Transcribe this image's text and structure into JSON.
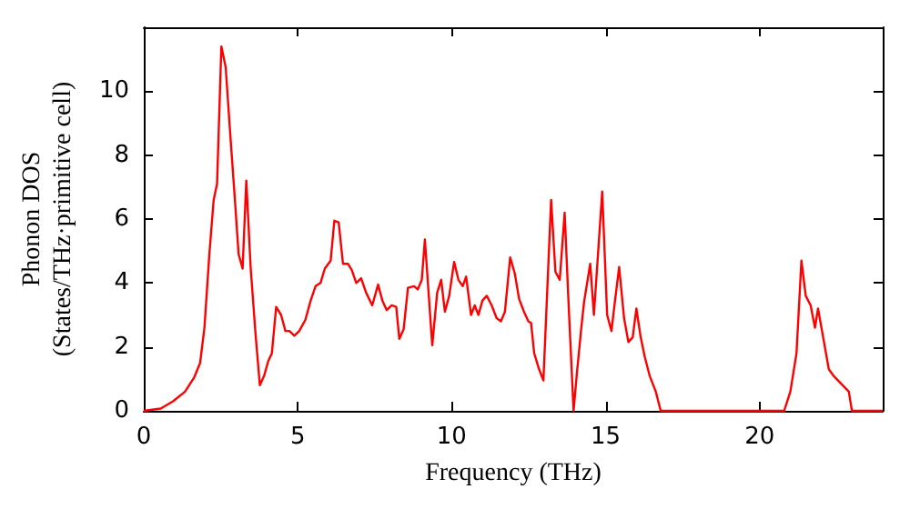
{
  "chart_data": {
    "type": "line",
    "xlabel": "Frequency (THz)",
    "ylabel": "Phonon DOS\n(States/THz·primitive cell)",
    "xlim": [
      0,
      24
    ],
    "ylim": [
      0,
      12
    ],
    "xticks": [
      0,
      5,
      10,
      15,
      20
    ],
    "yticks": [
      0,
      2,
      4,
      6,
      8,
      10
    ],
    "grid": false,
    "marker": "none",
    "line_style": "solid",
    "series": [
      {
        "color": "#ff0000",
        "x": [
          0,
          0.55,
          0.95,
          1.34,
          1.64,
          1.83,
          1.97,
          2.13,
          2.27,
          2.38,
          2.52,
          2.66,
          2.82,
          2.96,
          3.08,
          3.21,
          3.33,
          3.47,
          3.63,
          3.77,
          3.91,
          4.04,
          4.16,
          4.3,
          4.46,
          4.6,
          4.73,
          4.89,
          5.05,
          5.25,
          5.42,
          5.58,
          5.74,
          5.88,
          6.07,
          6.19,
          6.33,
          6.47,
          6.63,
          6.76,
          6.9,
          7.06,
          7.22,
          7.42,
          7.61,
          7.75,
          7.89,
          8.05,
          8.2,
          8.3,
          8.44,
          8.58,
          8.78,
          8.9,
          9.03,
          9.13,
          9.37,
          9.53,
          9.66,
          9.78,
          9.92,
          10.08,
          10.22,
          10.36,
          10.47,
          10.63,
          10.75,
          10.87,
          11.0,
          11.14,
          11.3,
          11.46,
          11.6,
          11.73,
          11.9,
          12.05,
          12.19,
          12.35,
          12.49,
          12.58,
          12.68,
          12.84,
          12.98,
          13.23,
          13.37,
          13.51,
          13.67,
          13.8,
          13.96,
          14.06,
          14.2,
          14.3,
          14.5,
          14.62,
          14.89,
          15.05,
          15.19,
          15.3,
          15.44,
          15.6,
          15.74,
          15.88,
          16.0,
          16.14,
          16.27,
          16.43,
          16.63,
          16.79,
          20.8,
          21.0,
          21.2,
          21.36,
          21.5,
          21.66,
          21.8,
          21.9,
          22.25,
          22.4,
          22.9,
          23.0,
          24
        ],
        "values": [
          0,
          0.07,
          0.3,
          0.6,
          1.05,
          1.5,
          2.6,
          4.9,
          6.6,
          7.1,
          11.4,
          10.75,
          8.5,
          6.6,
          4.9,
          4.45,
          7.2,
          4.5,
          2.4,
          0.8,
          1.1,
          1.55,
          1.8,
          3.25,
          3.0,
          2.5,
          2.5,
          2.35,
          2.5,
          2.85,
          3.45,
          3.9,
          4.0,
          4.45,
          4.7,
          5.95,
          5.9,
          4.6,
          4.6,
          4.4,
          4.0,
          4.15,
          3.7,
          3.3,
          3.95,
          3.45,
          3.15,
          3.3,
          3.25,
          2.25,
          2.55,
          3.85,
          3.9,
          3.8,
          4.1,
          5.36,
          2.05,
          3.7,
          4.1,
          3.1,
          3.6,
          4.66,
          4.1,
          3.9,
          4.2,
          3.0,
          3.3,
          3.0,
          3.45,
          3.6,
          3.3,
          2.9,
          2.8,
          3.1,
          4.8,
          4.3,
          3.5,
          3.1,
          2.8,
          2.75,
          1.8,
          1.3,
          0.95,
          6.6,
          4.35,
          4.1,
          6.2,
          3.3,
          0,
          1.1,
          2.5,
          3.4,
          4.6,
          3.0,
          6.86,
          3.0,
          2.5,
          3.4,
          4.5,
          2.9,
          2.15,
          2.3,
          3.2,
          2.3,
          1.7,
          1.1,
          0.6,
          0,
          0,
          0.6,
          1.8,
          4.7,
          3.6,
          3.3,
          2.6,
          3.2,
          1.3,
          1.1,
          0.6,
          0,
          0
        ]
      }
    ]
  }
}
